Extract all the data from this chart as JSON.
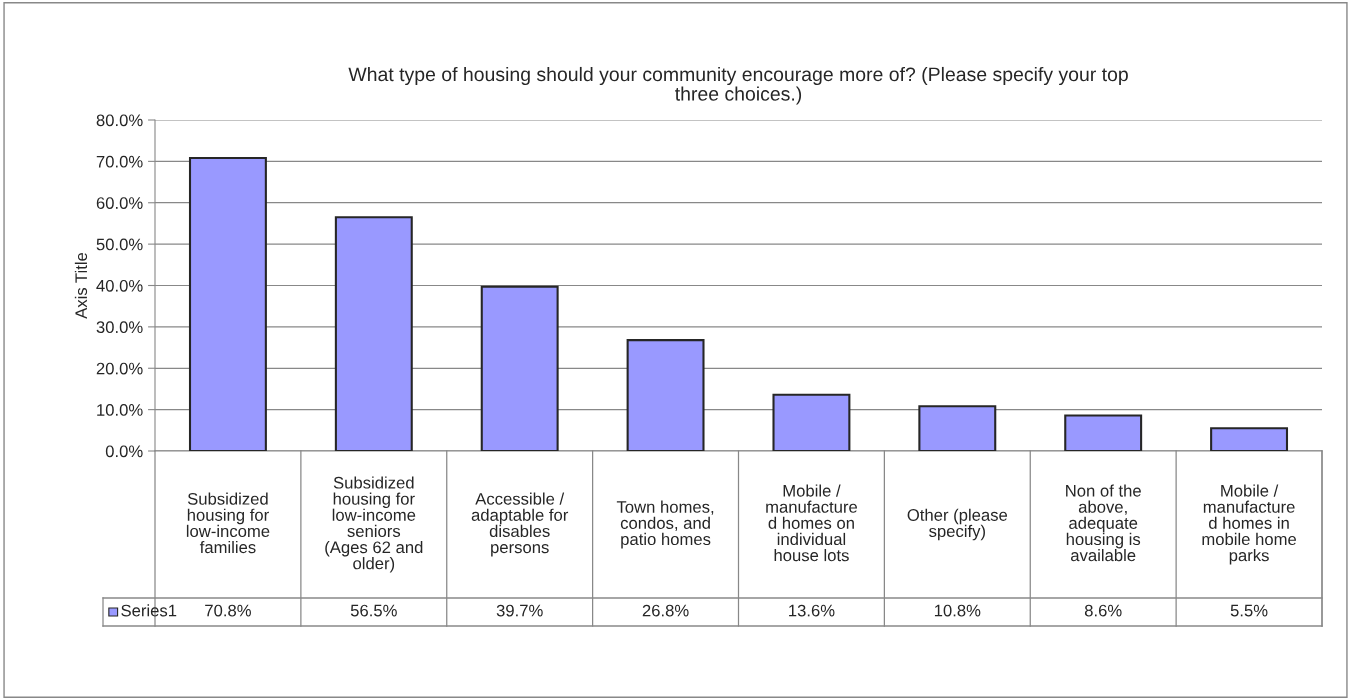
{
  "chart_data": {
    "type": "bar",
    "title": "What type of housing should your community encourage more of? (Please specify your top\nthree choices.)",
    "ylabel": "Axis Title",
    "categories": [
      "Subsidized\nhousing for\nlow-income\nfamilies",
      "Subsidized\nhousing for\nlow-income\nseniors\n(Ages 62 and\nolder)",
      "Accessible /\nadaptable for\ndisables\npersons",
      "Town homes,\ncondos, and\npatio homes",
      "Mobile /\nmanufacture\nd homes on\nindividual\nhouse lots",
      "Other (please\nspecify)",
      "Non of the\nabove,\nadequate\nhousing is\navailable",
      "Mobile /\nmanufacture\nd homes in\nmobile home\nparks"
    ],
    "series": [
      {
        "name": "Series1",
        "color": "#9999ff",
        "values": [
          70.8,
          56.5,
          39.7,
          26.8,
          13.6,
          10.8,
          8.6,
          5.5
        ],
        "value_labels": [
          "70.8%",
          "56.5%",
          "39.7%",
          "26.8%",
          "13.6%",
          "10.8%",
          "8.6%",
          "5.5%"
        ]
      }
    ],
    "ylim": [
      0,
      80
    ],
    "yticks": [
      {
        "value": 0,
        "label": "0.0%"
      },
      {
        "value": 10,
        "label": "10.0%"
      },
      {
        "value": 20,
        "label": "20.0%"
      },
      {
        "value": 30,
        "label": "30.0%"
      },
      {
        "value": 40,
        "label": "40.0%"
      },
      {
        "value": 50,
        "label": "50.0%"
      },
      {
        "value": 60,
        "label": "60.0%"
      },
      {
        "value": 70,
        "label": "70.0%"
      },
      {
        "value": 80,
        "label": "80.0%"
      }
    ],
    "grid": "y"
  }
}
